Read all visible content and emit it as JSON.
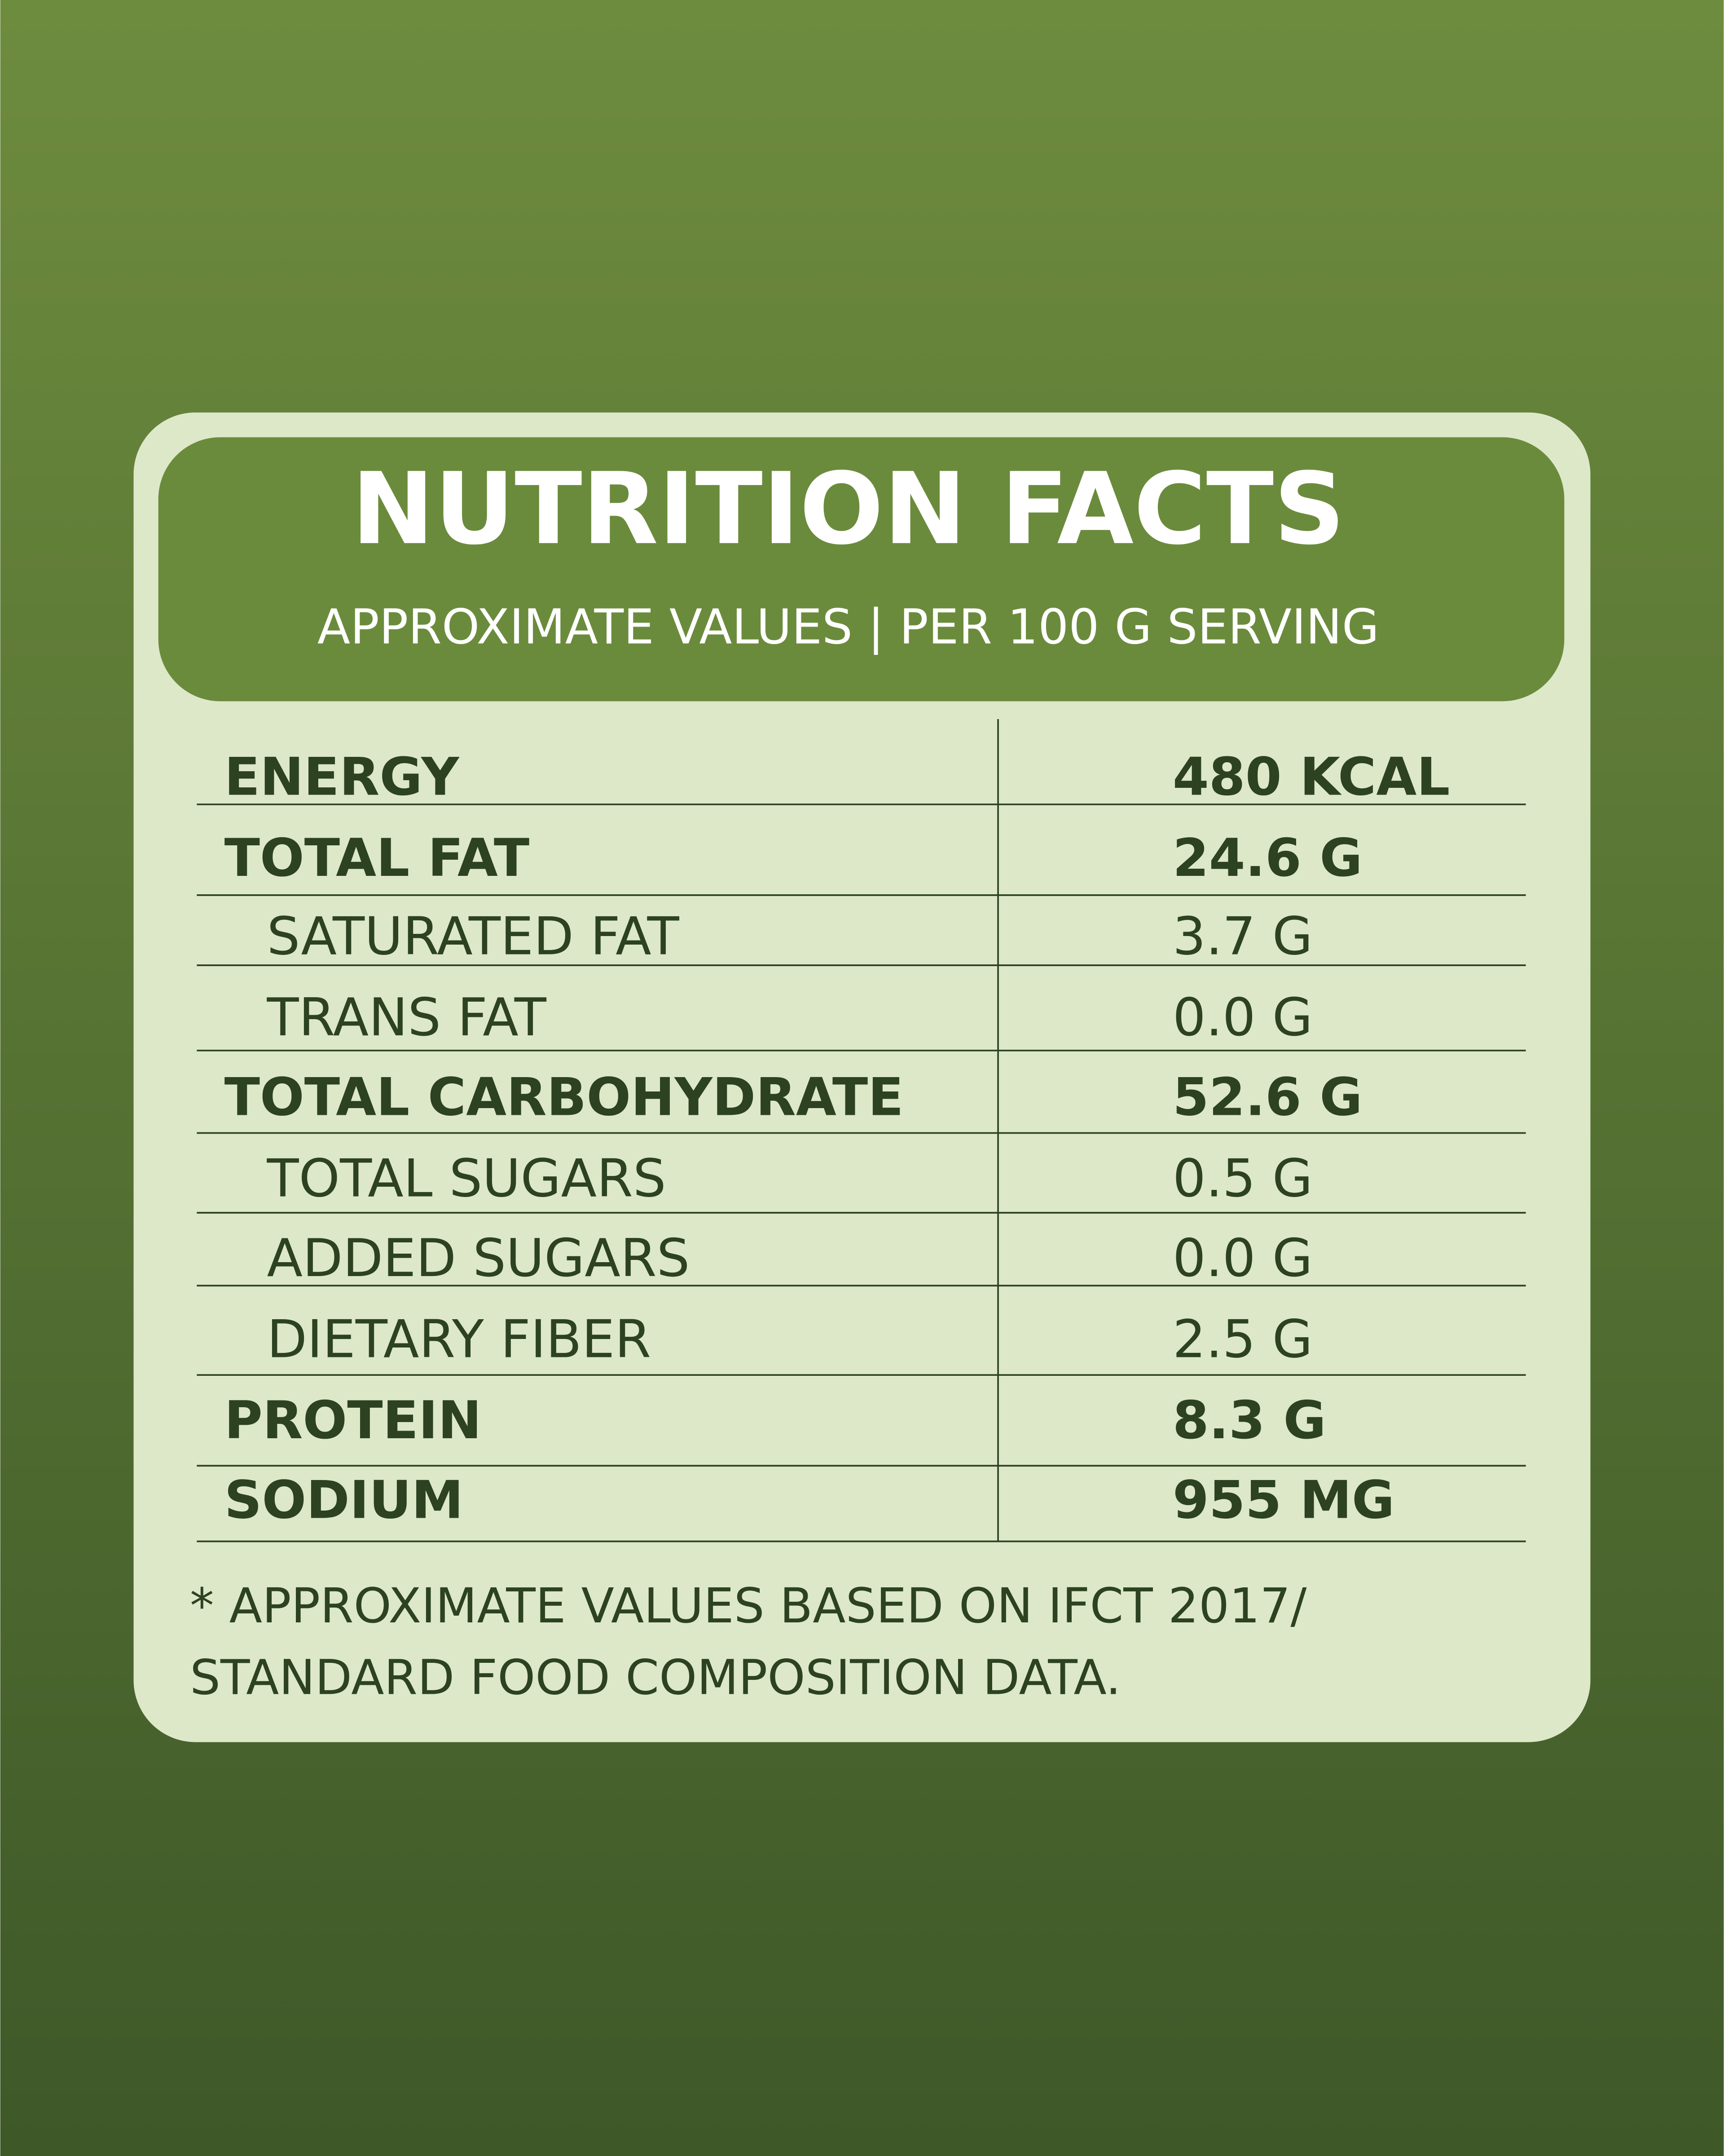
{
  "header": {
    "title": "NUTRITION FACTS",
    "subtitle": "APPROXIMATE VALUES | PER 100 G SERVING"
  },
  "table": {
    "rows": [
      [
        "ENERGY",
        "480 KCAL"
      ],
      [
        "TOTAL FAT",
        "24.6 G"
      ],
      [
        "SATURATED FAT",
        "3.7 G"
      ],
      [
        "TRANS FAT",
        "0.0 G"
      ],
      [
        "TOTAL CARBOHYDRATE",
        "52.6 G"
      ],
      [
        "TOTAL SUGARS",
        "0.5 G"
      ],
      [
        "ADDED SUGARS",
        "0.0 G"
      ],
      [
        "DIETARY FIBER",
        "2.5 G"
      ],
      [
        "PROTEIN",
        "8.3 G"
      ],
      [
        "SODIUM",
        "955 MG"
      ]
    ]
  },
  "footnote": [
    "* APPROXIMATE VALUES BASED ON IFCT 2017/",
    "STANDARD FOOD COMPOSITION DATA."
  ]
}
